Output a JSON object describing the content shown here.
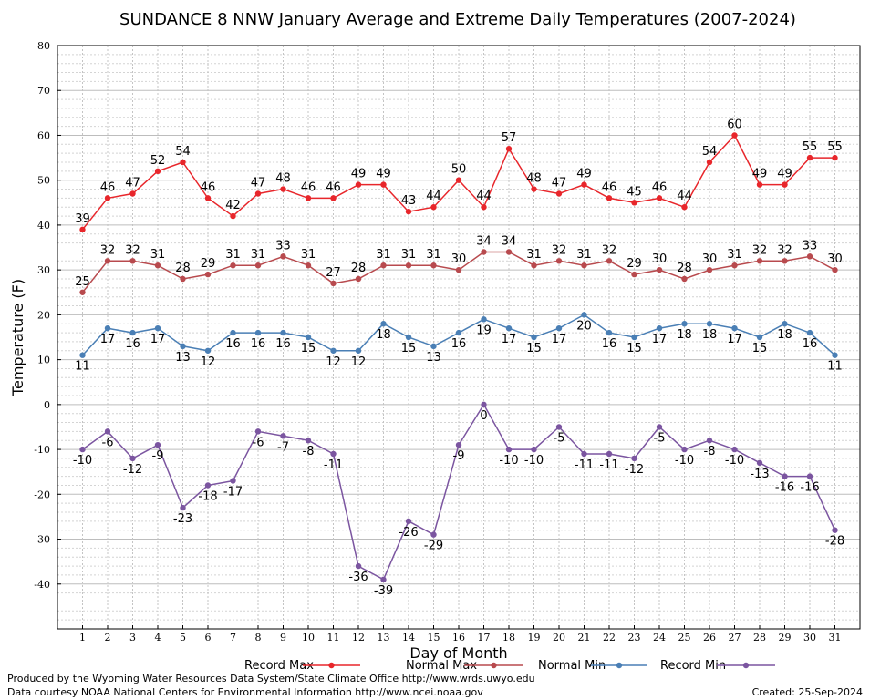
{
  "chart_data": {
    "type": "line",
    "title": "SUNDANCE 8 NNW January Average and Extreme Daily Temperatures (2007-2024)",
    "xlabel": "Day of Month",
    "ylabel": "Temperature (F)",
    "ylim": [
      -50,
      80
    ],
    "yticks": [
      "80",
      "70",
      "60",
      "50",
      "40",
      "30",
      "20",
      "10",
      "0",
      "-10",
      "-20",
      "-30",
      "-40"
    ],
    "x": [
      "1",
      "2",
      "3",
      "4",
      "5",
      "6",
      "7",
      "8",
      "9",
      "10",
      "11",
      "12",
      "13",
      "14",
      "15",
      "16",
      "17",
      "18",
      "19",
      "20",
      "21",
      "22",
      "23",
      "24",
      "25",
      "26",
      "27",
      "28",
      "29",
      "30",
      "31"
    ],
    "grid": true,
    "legend_position": "bottom",
    "series": [
      {
        "name": "Record Max",
        "color": "#e8262b",
        "labelPos": "above",
        "values": [
          39,
          46,
          47,
          52,
          54,
          46,
          42,
          47,
          48,
          46,
          46,
          49,
          49,
          43,
          44,
          50,
          44,
          57,
          48,
          47,
          49,
          46,
          45,
          46,
          44,
          54,
          60,
          49,
          49,
          55,
          55
        ]
      },
      {
        "name": "Normal Max",
        "color": "#b84a4e",
        "labelPos": "above",
        "values": [
          25,
          32,
          32,
          31,
          28,
          29,
          31,
          31,
          33,
          31,
          27,
          28,
          31,
          31,
          31,
          30,
          34,
          34,
          31,
          32,
          31,
          32,
          29,
          30,
          28,
          30,
          31,
          32,
          32,
          33,
          30
        ]
      },
      {
        "name": "Normal Min",
        "color": "#4a7fb5",
        "labelPos": "below",
        "values": [
          11,
          17,
          16,
          17,
          13,
          12,
          16,
          16,
          16,
          15,
          12,
          12,
          18,
          15,
          13,
          16,
          19,
          17,
          15,
          17,
          20,
          16,
          15,
          17,
          18,
          18,
          17,
          15,
          18,
          16,
          11
        ]
      },
      {
        "name": "Record Min",
        "color": "#7b55a0",
        "labelPos": "below",
        "values": [
          -10,
          -6,
          -12,
          -9,
          -23,
          -18,
          -17,
          -6,
          -7,
          -8,
          -11,
          -36,
          -39,
          -26,
          -29,
          -9,
          0,
          -10,
          -10,
          -5,
          -11,
          -11,
          -12,
          -5,
          -10,
          -8,
          -10,
          -13,
          -16,
          -16,
          -28
        ]
      }
    ]
  },
  "footer": {
    "produced_by": "Produced by the Wyoming Water Resources Data System/State Climate Office http://www.wrds.uwyo.edu",
    "courtesy": "Data courtesy NOAA National Centers for Environmental Information http://www.ncei.noaa.gov",
    "created": "Created: 25-Sep-2024"
  }
}
